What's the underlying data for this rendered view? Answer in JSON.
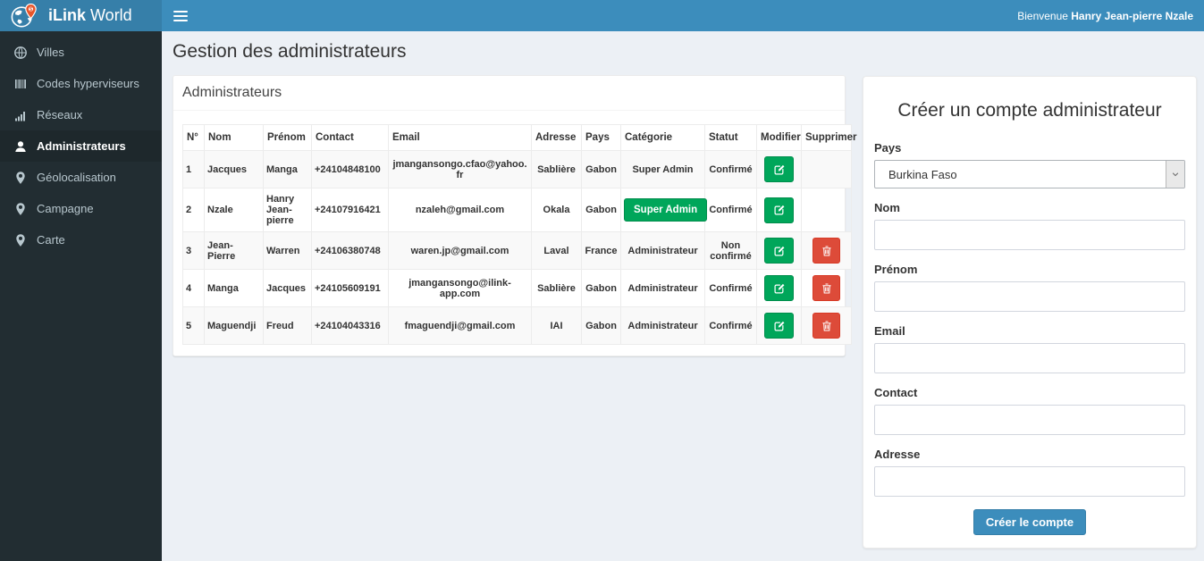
{
  "header": {
    "brand_bold": "iLink",
    "brand_rest": " World",
    "welcome_prefix": "Bienvenue ",
    "welcome_name": "Hanry Jean-pierre Nzale"
  },
  "sidebar": {
    "items": [
      {
        "label": "Villes",
        "icon": "globe-icon",
        "active": false
      },
      {
        "label": "Codes hyperviseurs",
        "icon": "barcode-icon",
        "active": false
      },
      {
        "label": "Réseaux",
        "icon": "signal-bars-icon",
        "active": false
      },
      {
        "label": "Administrateurs",
        "icon": "user-icon",
        "active": true
      },
      {
        "label": "Géolocalisation",
        "icon": "map-marker-icon",
        "active": false
      },
      {
        "label": "Campagne",
        "icon": "map-marker-icon",
        "active": false
      },
      {
        "label": "Carte",
        "icon": "map-marker-icon",
        "active": false
      }
    ]
  },
  "page": {
    "title": "Gestion des administrateurs"
  },
  "admin_panel": {
    "title": "Administrateurs",
    "columns": [
      "N°",
      "Nom",
      "Prénom",
      "Contact",
      "Email",
      "Adresse",
      "Pays",
      "Catégorie",
      "Statut",
      "Modifier",
      "Supprimer"
    ],
    "rows": [
      {
        "num": "1",
        "nom": "Jacques",
        "prenom": "Manga",
        "contact": "+24104848100",
        "email": "jmangansongo.cfao@yahoo.fr",
        "adresse": "Sablière",
        "pays": "Gabon",
        "categorie": "Super Admin",
        "categorie_style": "text",
        "statut": "Confirmé",
        "can_delete": false
      },
      {
        "num": "2",
        "nom": "Nzale",
        "prenom": "Hanry Jean-pierre",
        "contact": "+24107916421",
        "email": "nzaleh@gmail.com",
        "adresse": "Okala",
        "pays": "Gabon",
        "categorie": "Super Admin",
        "categorie_style": "badge",
        "statut": "Confirmé",
        "can_delete": false
      },
      {
        "num": "3",
        "nom": "Jean-Pierre",
        "prenom": "Warren",
        "contact": "+24106380748",
        "email": "waren.jp@gmail.com",
        "adresse": "Laval",
        "pays": "France",
        "categorie": "Administrateur",
        "categorie_style": "text",
        "statut": "Non confirmé",
        "can_delete": true
      },
      {
        "num": "4",
        "nom": "Manga",
        "prenom": "Jacques",
        "contact": "+24105609191",
        "email": "jmangansongo@ilink-app.com",
        "adresse": "Sablière",
        "pays": "Gabon",
        "categorie": "Administrateur",
        "categorie_style": "text",
        "statut": "Confirmé",
        "can_delete": true
      },
      {
        "num": "5",
        "nom": "Maguendji",
        "prenom": "Freud",
        "contact": "+24104043316",
        "email": "fmaguendji@gmail.com",
        "adresse": "IAI",
        "pays": "Gabon",
        "categorie": "Administrateur",
        "categorie_style": "text",
        "statut": "Confirmé",
        "can_delete": true
      }
    ]
  },
  "create_form": {
    "title": "Créer un compte administrateur",
    "pays_label": "Pays",
    "pays_value": "Burkina Faso",
    "text_fields": [
      {
        "label": "Nom",
        "value": ""
      },
      {
        "label": "Prénom",
        "value": ""
      },
      {
        "label": "Email",
        "value": ""
      },
      {
        "label": "Contact",
        "value": ""
      },
      {
        "label": "Adresse",
        "value": ""
      }
    ],
    "submit_label": "Créer le compte"
  },
  "colors": {
    "navbar_blue": "#3c8dbc",
    "logo_blue": "#367fa9",
    "sidebar_dark": "#222d32",
    "sidebar_active": "#1e282c",
    "content_bg": "#ecf0f5",
    "green": "#00a65a",
    "red": "#dd4b39",
    "pin_orange": "#e8552a"
  }
}
